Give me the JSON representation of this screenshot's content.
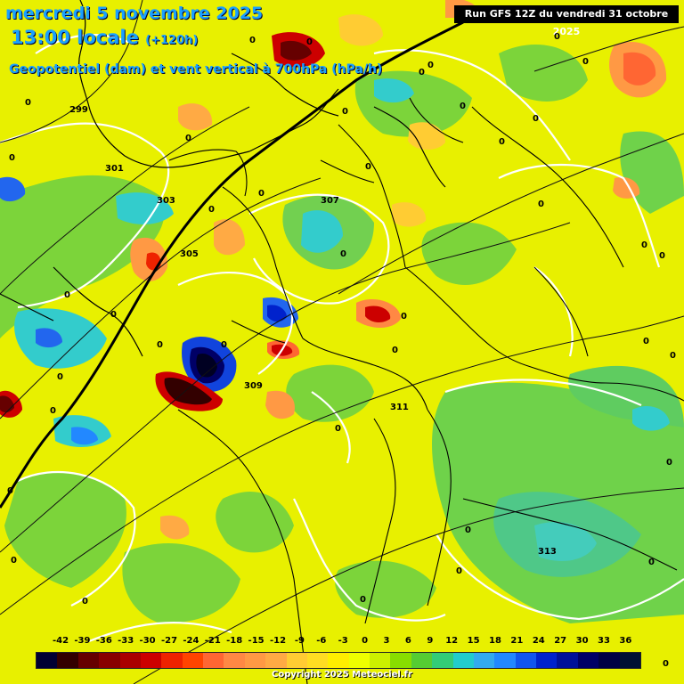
{
  "header": {
    "date": "mercredi 5 novembre 2025",
    "time": "13:00 locale",
    "offset": "(+120h)",
    "subtitle": "Geopotentiel (dam) et vent vertical à 700hPa (hPa/h)",
    "run": "Run GFS 12Z du vendredi 31 octobre 2025"
  },
  "legend": {
    "ticks": [
      "-42",
      "-39",
      "-36",
      "-33",
      "-30",
      "-27",
      "-24",
      "-21",
      "-18",
      "-15",
      "-12",
      "-9",
      "-6",
      "-3",
      "0",
      "3",
      "6",
      "9",
      "12",
      "15",
      "18",
      "21",
      "24",
      "27",
      "30",
      "33",
      "36"
    ],
    "colors": [
      "#000033",
      "#330000",
      "#660000",
      "#880000",
      "#aa0000",
      "#cc0000",
      "#ee2200",
      "#ff4400",
      "#ff6633",
      "#ff8844",
      "#ff9944",
      "#ffaa44",
      "#ffcc33",
      "#ffdd22",
      "#ffee00",
      "#eeff00",
      "#ccf000",
      "#88dd00",
      "#55cc33",
      "#33cc77",
      "#22cccc",
      "#33aaee",
      "#2288ff",
      "#1155ee",
      "#0022cc",
      "#001199",
      "#000066",
      "#000044",
      "#001133"
    ]
  },
  "contours": [
    {
      "label": "299"
    },
    {
      "label": "301"
    },
    {
      "label": "303"
    },
    {
      "label": "305"
    },
    {
      "label": "307"
    },
    {
      "label": "309"
    },
    {
      "label": "311"
    },
    {
      "label": "313"
    }
  ],
  "zero_labels": [
    "0",
    "0",
    "0",
    "0",
    "0",
    "0",
    "0",
    "0",
    "0",
    "0",
    "0",
    "0",
    "0",
    "0",
    "0",
    "0",
    "0",
    "0",
    "0",
    "0",
    "0",
    "0",
    "0",
    "0",
    "0",
    "0",
    "0",
    "0",
    "0",
    "0",
    "0",
    "0",
    "0",
    "0",
    "0",
    "0",
    "0",
    "0",
    "0",
    "0"
  ],
  "copyright": "Copyright 2025 Meteociel.fr"
}
